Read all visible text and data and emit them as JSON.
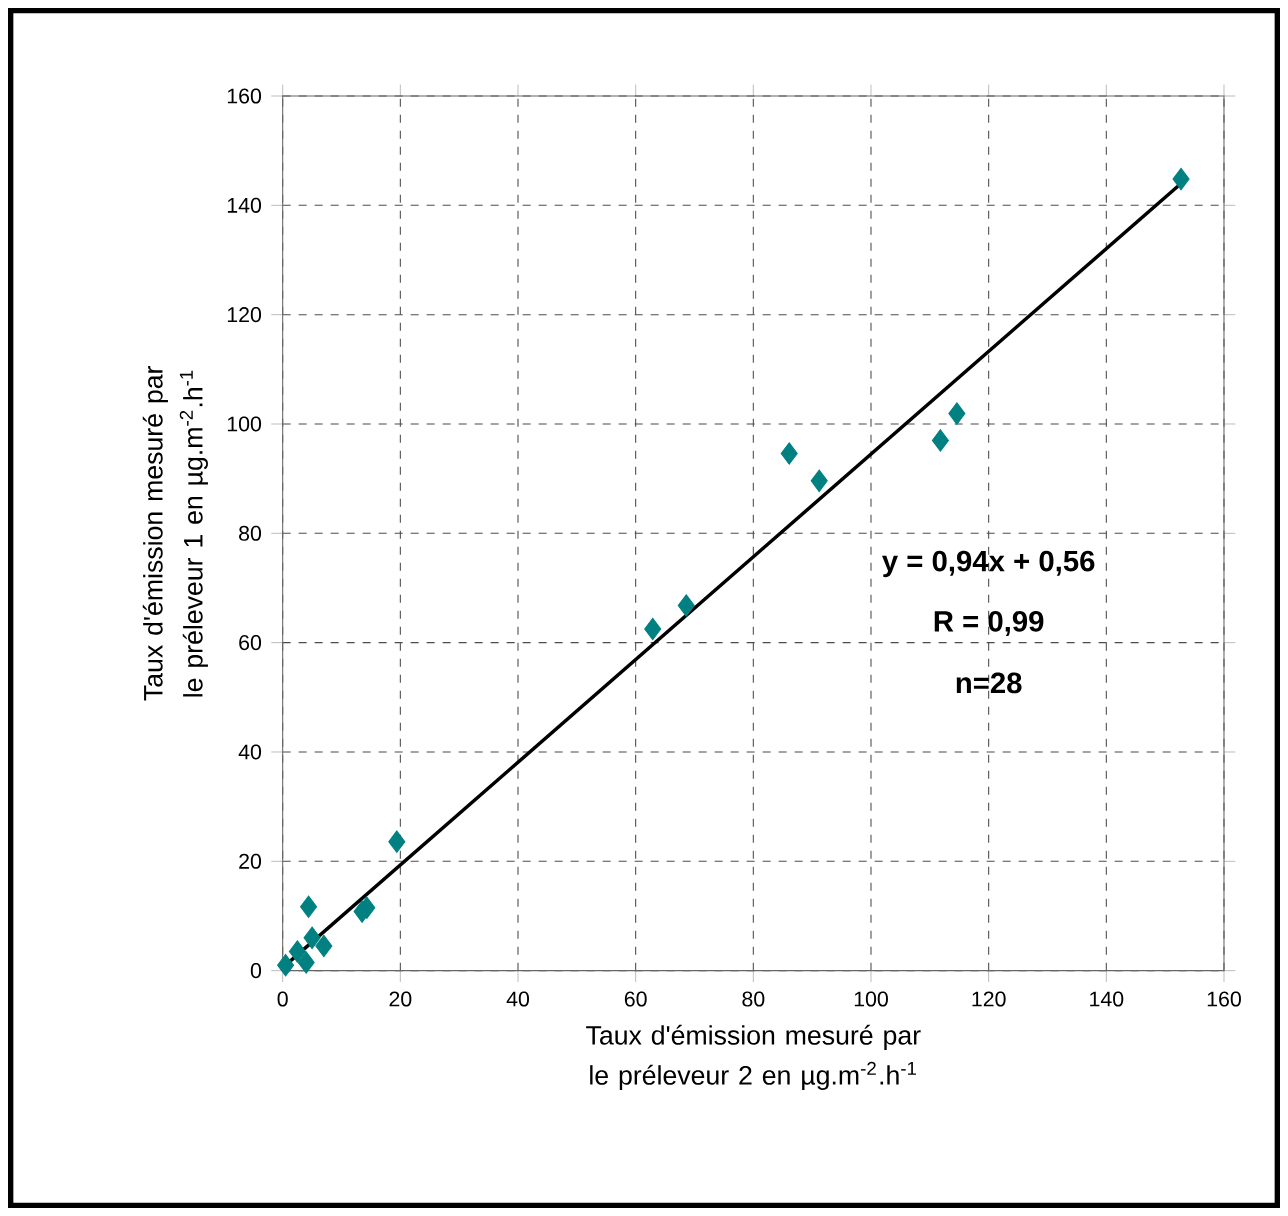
{
  "chart_data": {
    "type": "scatter",
    "xlabel": "Taux d'émission mesuré par le préleveur 2 en µg.m$^{-2}$.h$^{-1}$",
    "ylabel": "Taux d'émission mesuré par le préleveur 1 en µg.m$^{-2}$.h$^{-1}$",
    "xlim": [
      0,
      160
    ],
    "ylim": [
      0,
      160
    ],
    "xticks": [
      0,
      20,
      40,
      60,
      80,
      100,
      120,
      140,
      160
    ],
    "yticks": [
      0,
      20,
      40,
      60,
      80,
      100,
      120,
      140,
      160
    ],
    "grid": true,
    "annotations": [
      "y = 0,94x + 0,56",
      "R = 0,99",
      "n=28"
    ],
    "series": [
      {
        "color": "#008080",
        "marker": "diamond",
        "x": [
          152.7,
          114.6,
          111.8,
          86.1,
          91.2,
          68.6,
          62.9,
          19.4,
          14.3,
          13.5,
          4.4,
          0.5,
          2.5,
          4,
          5,
          7
        ],
        "values": [
          144.8,
          101.9,
          97,
          94.6,
          89.6,
          66.8,
          62.5,
          23.6,
          11.5,
          10.8,
          11.7,
          1,
          3.5,
          1.5,
          6,
          4.5
        ]
      },
      {
        "type": "line",
        "marker": "none",
        "color": "#000000",
        "x": [
          0.5,
          152.7
        ],
        "values": [
          1,
          144
        ]
      }
    ]
  }
}
